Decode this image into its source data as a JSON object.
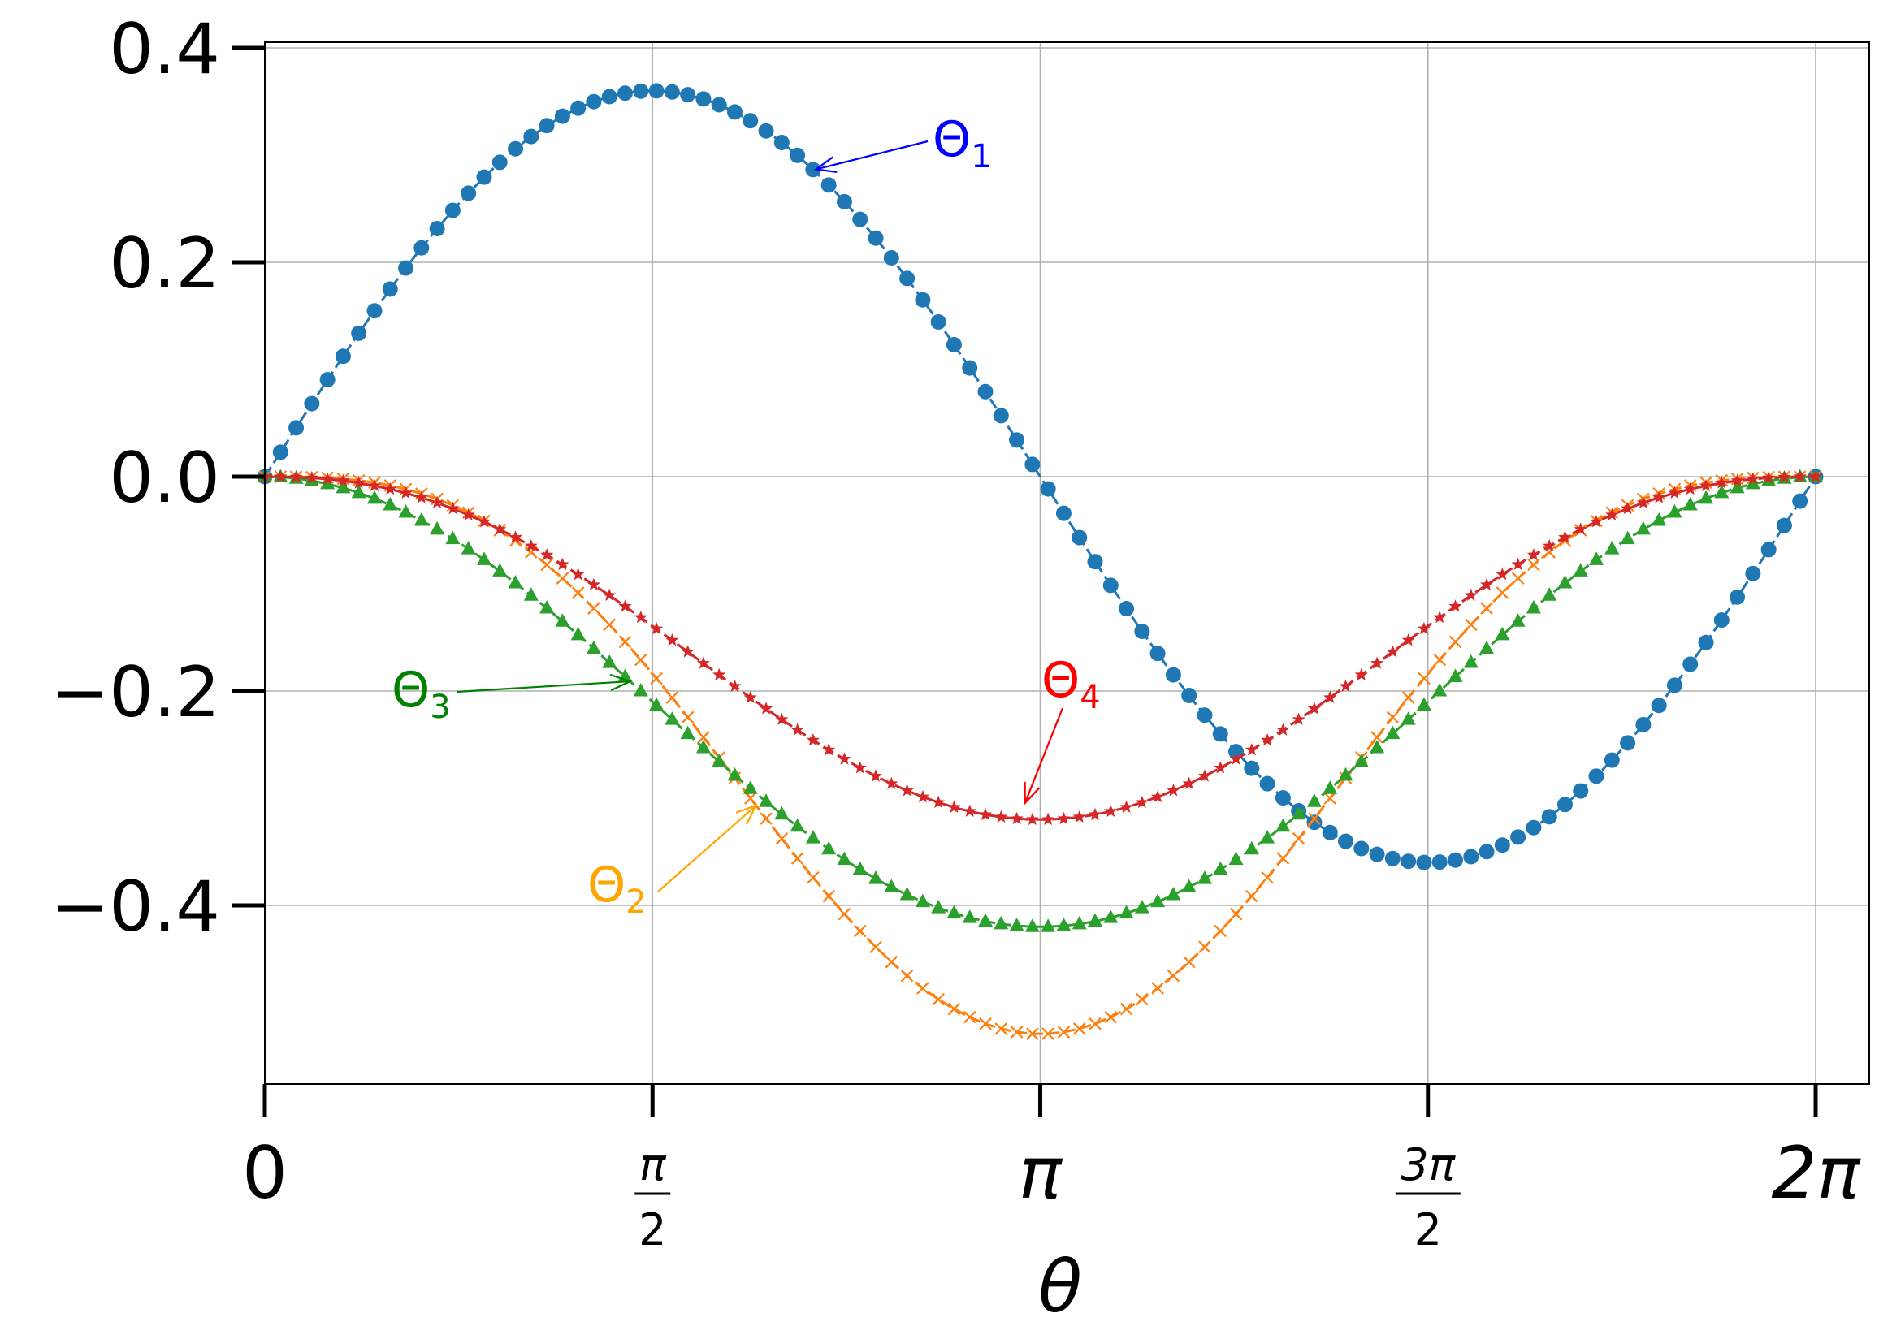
{
  "chart_data": {
    "type": "line",
    "xlabel": "θ",
    "ylabel": "",
    "title": "",
    "xlim": [
      0,
      6.2832
    ],
    "ylim": [
      -0.57,
      0.41
    ],
    "grid": true,
    "x_ticks": [
      {
        "value": 0,
        "num": "0",
        "den": ""
      },
      {
        "value": 1.5708,
        "num": "π",
        "den": "2"
      },
      {
        "value": 3.1416,
        "num": "π",
        "den": ""
      },
      {
        "value": 4.7124,
        "num": "3π",
        "den": "2"
      },
      {
        "value": 6.2832,
        "num": "2π",
        "den": ""
      }
    ],
    "y_ticks": [
      {
        "value": 0.4,
        "label": "0.4"
      },
      {
        "value": 0.2,
        "label": "0.2"
      },
      {
        "value": 0.0,
        "label": "0.0"
      },
      {
        "value": -0.2,
        "label": "−0.2"
      },
      {
        "value": -0.4,
        "label": "−0.4"
      }
    ],
    "n_points": 100,
    "series": [
      {
        "name": "Θ1",
        "color": "#1f77b4",
        "marker": "circle",
        "formula": "0.36*sin(x)",
        "amplitude": 0.36
      },
      {
        "name": "Θ2",
        "color": "#ff7f0e",
        "marker": "x",
        "formula": "-0.52*((1-cos(x))/2)^1.5",
        "amplitude": 0.52
      },
      {
        "name": "Θ3",
        "color": "#2ca02c",
        "marker": "triangle",
        "formula": "-0.42*(1-cos(x))/2",
        "amplitude": 0.42
      },
      {
        "name": "Θ4",
        "color": "#d62728",
        "marker": "star",
        "formula": "-0.32*((1-cos(x))/2)^1.2",
        "amplitude": 0.32
      }
    ],
    "annotations": [
      {
        "series": "Θ1",
        "main": "Θ",
        "sub": "1",
        "color": "#0000ff",
        "target_x": 2.22
      },
      {
        "series": "Θ2",
        "main": "Θ",
        "sub": "2",
        "color": "#ffa500",
        "target_x": 1.99
      },
      {
        "series": "Θ3",
        "main": "Θ",
        "sub": "3",
        "color": "#008000",
        "target_x": 1.48
      },
      {
        "series": "Θ4",
        "main": "Θ",
        "sub": "4",
        "color": "#ff0000",
        "target_x": 3.08
      }
    ]
  }
}
